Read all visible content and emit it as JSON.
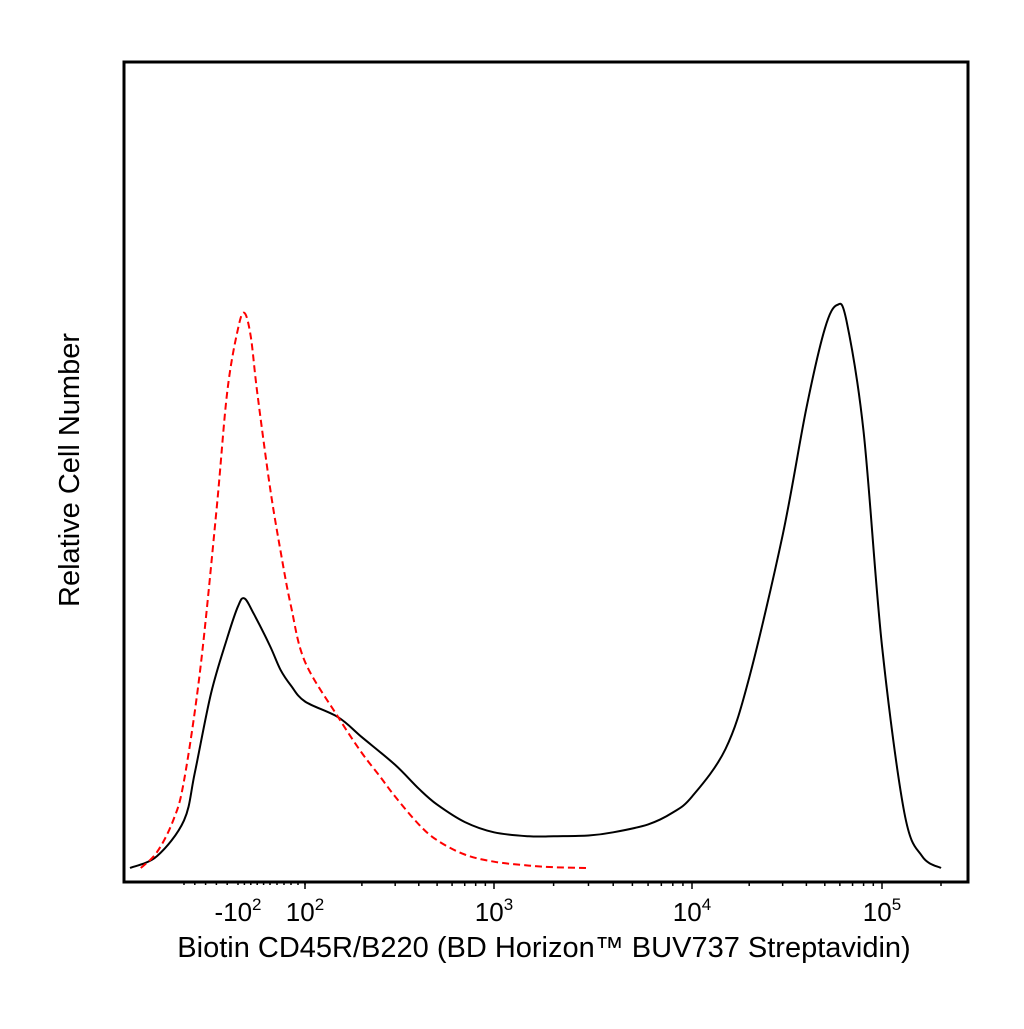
{
  "chart_data": {
    "type": "line",
    "title": "",
    "xlabel": "Biotin CD45R/B220 (BD Horizon™ BUV737 Streptavidin)",
    "ylabel": "Relative Cell Number",
    "xscale": "biexponential (logicle)",
    "xlim": [
      -300,
      250000
    ],
    "ylim": [
      0,
      1
    ],
    "grid": false,
    "legend": "none",
    "x_ticks": [
      {
        "base": "-10",
        "exp": "2",
        "value": -100
      },
      {
        "base": "10",
        "exp": "2",
        "value": 100
      },
      {
        "base": "10",
        "exp": "3",
        "value": 1000
      },
      {
        "base": "10",
        "exp": "4",
        "value": 10000
      },
      {
        "base": "10",
        "exp": "5",
        "value": 100000
      }
    ],
    "series": [
      {
        "color": "#000000",
        "style": "solid",
        "x": [
          -300,
          -250,
          -200,
          -180,
          -150,
          -120,
          -100,
          -80,
          -50,
          0,
          30,
          60,
          100,
          150,
          200,
          300,
          400,
          500,
          700,
          1000,
          1500,
          2000,
          3000,
          4000,
          6000,
          8000,
          10000,
          15000,
          20000,
          30000,
          40000,
          50000,
          58000,
          65000,
          80000,
          100000,
          130000,
          160000,
          200000
        ],
        "y": [
          0.0,
          0.015,
          0.06,
          0.12,
          0.22,
          0.29,
          0.33,
          0.34,
          0.32,
          0.28,
          0.25,
          0.23,
          0.21,
          0.19,
          0.165,
          0.13,
          0.1,
          0.08,
          0.058,
          0.045,
          0.04,
          0.04,
          0.041,
          0.045,
          0.055,
          0.07,
          0.09,
          0.15,
          0.24,
          0.42,
          0.58,
          0.68,
          0.71,
          0.69,
          0.55,
          0.28,
          0.07,
          0.015,
          0.0
        ]
      },
      {
        "color": "#ff0000",
        "style": "dashed",
        "x": [
          -280,
          -250,
          -220,
          -200,
          -170,
          -140,
          -120,
          -100,
          -80,
          -60,
          -40,
          0,
          30,
          60,
          100,
          150,
          200,
          250,
          300,
          400,
          500,
          700,
          1000,
          1500,
          2000,
          3000
        ],
        "y": [
          0.0,
          0.02,
          0.06,
          0.11,
          0.25,
          0.45,
          0.6,
          0.68,
          0.7,
          0.67,
          0.6,
          0.48,
          0.4,
          0.33,
          0.26,
          0.19,
          0.145,
          0.115,
          0.09,
          0.055,
          0.035,
          0.017,
          0.008,
          0.003,
          0.001,
          0.0
        ]
      }
    ]
  }
}
